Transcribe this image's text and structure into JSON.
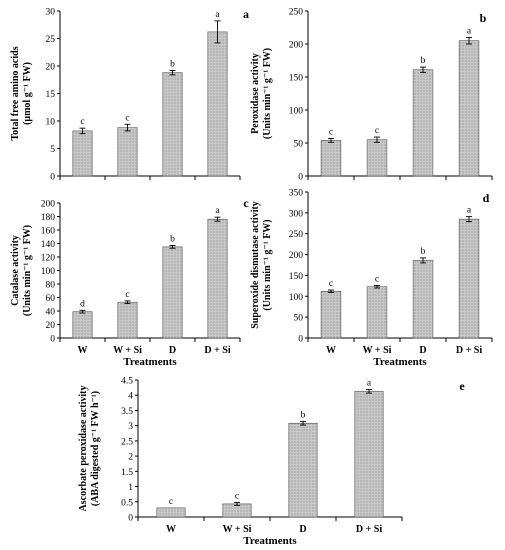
{
  "chart_data": [
    {
      "panel": "a",
      "type": "bar",
      "categories": [
        "W",
        "W + Si",
        "D",
        "D + Si"
      ],
      "values": [
        8.2,
        8.8,
        18.8,
        26.2
      ],
      "errors": [
        0.5,
        0.6,
        0.4,
        2.0
      ],
      "letters": [
        "c",
        "c",
        "b",
        "a"
      ],
      "ylabel": [
        "Total free amino acids",
        "(μmol g⁻¹ FW)"
      ],
      "xlabel": "",
      "ylim": [
        0,
        30
      ],
      "yticks": [
        0,
        5,
        10,
        15,
        20,
        25,
        30
      ],
      "show_x_ticklabels": false
    },
    {
      "panel": "b",
      "type": "bar",
      "categories": [
        "W",
        "W + Si",
        "D",
        "D + Si"
      ],
      "values": [
        54,
        55,
        161,
        205
      ],
      "errors": [
        3,
        4,
        4,
        5
      ],
      "letters": [
        "c",
        "c",
        "b",
        "a"
      ],
      "ylabel": [
        "Peroxidase activity",
        "(Units min⁻¹ g⁻¹ FW)"
      ],
      "xlabel": "",
      "ylim": [
        0,
        250
      ],
      "yticks": [
        0,
        50,
        100,
        150,
        200,
        250
      ],
      "show_x_ticklabels": false
    },
    {
      "panel": "c",
      "type": "bar",
      "categories": [
        "W",
        "W + Si",
        "D",
        "D + Si"
      ],
      "values": [
        39,
        53,
        135,
        176
      ],
      "errors": [
        2,
        2,
        2,
        3
      ],
      "letters": [
        "d",
        "c",
        "b",
        "a"
      ],
      "ylabel": [
        "Catalase activity",
        "(Units min⁻¹ g⁻¹ FW)"
      ],
      "xlabel": "Treatments",
      "ylim": [
        0,
        200
      ],
      "yticks": [
        0,
        20,
        40,
        60,
        80,
        100,
        120,
        140,
        160,
        180,
        200
      ],
      "show_x_ticklabels": true
    },
    {
      "panel": "d",
      "type": "bar",
      "categories": [
        "W",
        "W + Si",
        "D",
        "D + Si"
      ],
      "values": [
        112,
        123,
        186,
        285
      ],
      "errors": [
        3,
        3,
        6,
        6
      ],
      "letters": [
        "c",
        "c",
        "b",
        "a"
      ],
      "ylabel": [
        "Superoxide dismutase activity",
        "(Units min⁻¹ g⁻¹ FW)"
      ],
      "xlabel": "Treatments",
      "ylim": [
        0,
        350
      ],
      "yticks": [
        0,
        50,
        100,
        150,
        200,
        250,
        300,
        350
      ],
      "show_x_ticklabels": true
    },
    {
      "panel": "e",
      "type": "bar",
      "categories": [
        "W",
        "W + Si",
        "D",
        "D + Si"
      ],
      "values": [
        0.3,
        0.43,
        3.08,
        4.13
      ],
      "errors": [
        0.0,
        0.05,
        0.06,
        0.06
      ],
      "letters": [
        "c",
        "c",
        "b",
        "a"
      ],
      "ylabel": [
        "Ascorbate peroxidase activity",
        "(ABA digested g⁻¹ FW h⁻¹)"
      ],
      "xlabel": "Treatments",
      "ylim": [
        0,
        4.5
      ],
      "yticks": [
        0,
        0.5,
        1,
        1.5,
        2,
        2.5,
        3,
        3.5,
        4,
        4.5
      ],
      "show_x_ticklabels": true
    }
  ],
  "style": {
    "bar_fill": "#c8c8c8",
    "bar_pattern_dot": "#8a8a8a",
    "axis_color": "#000000",
    "text_color": "#000000"
  }
}
